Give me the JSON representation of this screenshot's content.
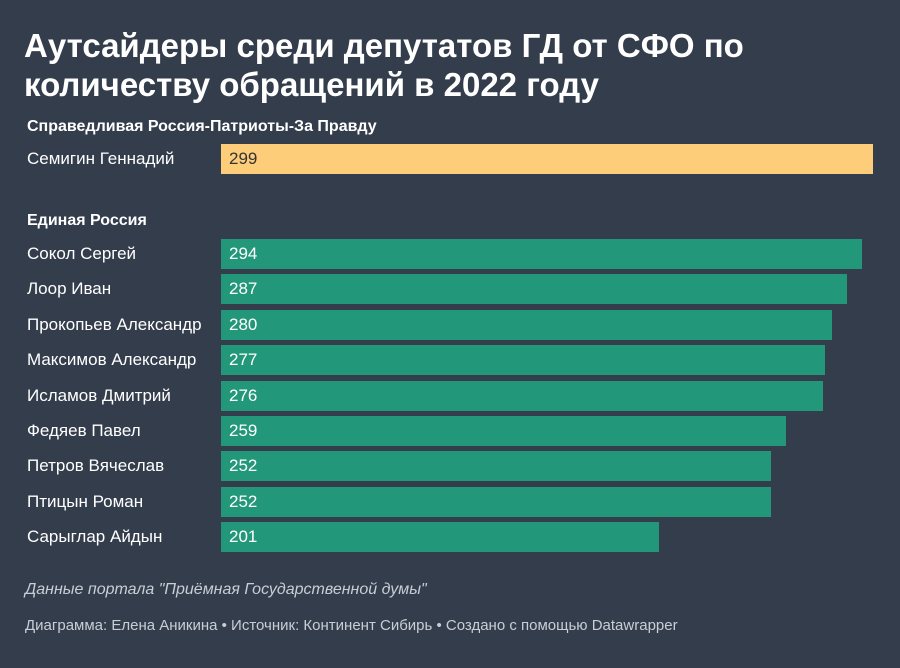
{
  "title": "Аутсайдеры среди депутатов ГД от СФО по количеству обращений в 2022 году",
  "note": "Данные портала \"Приёмная Государственной думы\"",
  "credits": "Диаграмма: Елена Аникина • Источник: Континент Сибирь • Создано с помощью Datawrapper",
  "colors": {
    "background": "#343d4c",
    "sr_bar": "#fdcd79",
    "sr_text": "#333333",
    "er_bar": "#23977a",
    "er_text": "#ffffff"
  },
  "chart_data": {
    "type": "bar",
    "orientation": "horizontal",
    "title": "Аутсайдеры среди депутатов ГД от СФО по количеству обращений в 2022 году",
    "xlim": [
      0,
      299
    ],
    "groups": [
      {
        "name": "Справедливая Россия-Патриоты-За Правду",
        "color_key": "sr",
        "categories": [
          "Семигин Геннадий"
        ],
        "values": [
          299
        ]
      },
      {
        "name": "Единая Россия",
        "color_key": "er",
        "categories": [
          "Сокол Сергей",
          "Лоор Иван",
          "Прокопьев Александр",
          "Максимов Александр",
          "Исламов Дмитрий",
          "Федяев Павел",
          "Петров Вячеслав",
          "Птицын Роман",
          "Сарыглар Айдын"
        ],
        "values": [
          294,
          287,
          280,
          277,
          276,
          259,
          252,
          252,
          201
        ]
      }
    ]
  }
}
